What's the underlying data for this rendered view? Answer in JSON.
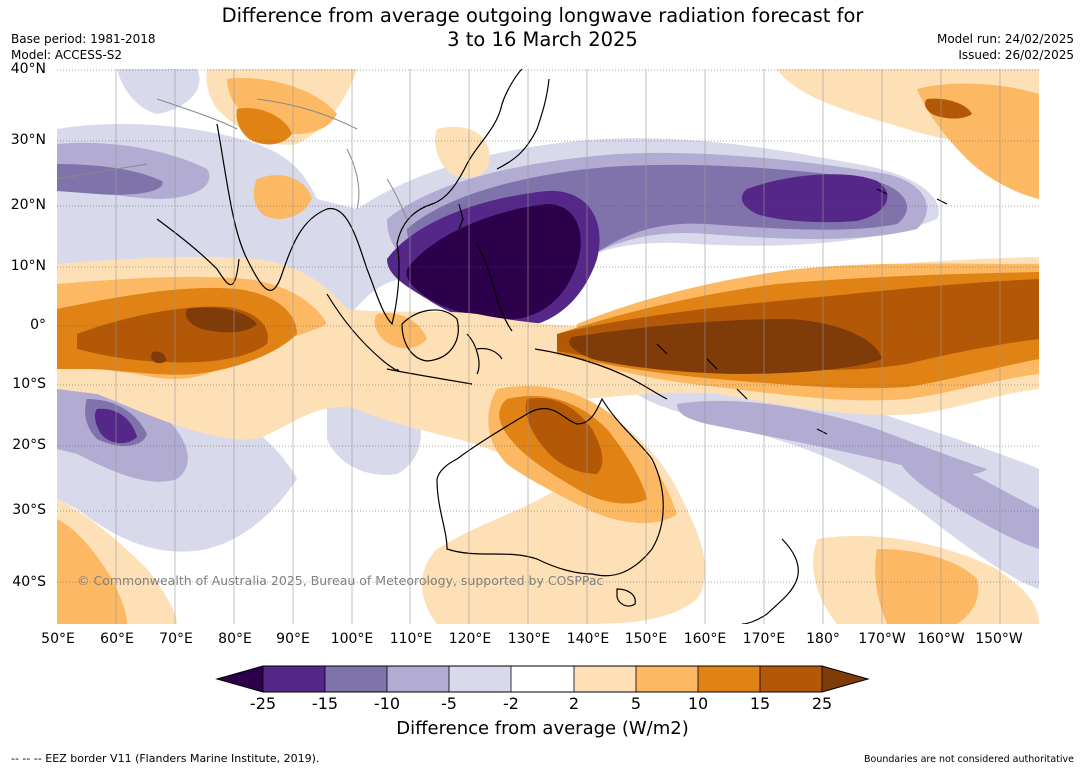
{
  "header": {
    "title_line1": "Difference from average outgoing longwave radiation forecast for",
    "title_line2": "3 to 16 March 2025",
    "base_period": "Base period: 1981-2018",
    "model": "Model: ACCESS-S2",
    "model_run": "Model run: 24/02/2025",
    "issued": "Issued: 26/02/2025"
  },
  "map": {
    "copyright": "© Commonwealth of Australia 2025, Bureau of Meteorology, supported by COSPPac",
    "lat_labels": [
      "40°N",
      "30°N",
      "20°N",
      "10°N",
      "0°",
      "10°S",
      "20°S",
      "30°S",
      "40°S"
    ],
    "lon_labels": [
      "50°E",
      "60°E",
      "70°E",
      "80°E",
      "90°E",
      "100°E",
      "110°E",
      "120°E",
      "130°E",
      "140°E",
      "150°E",
      "160°E",
      "170°E",
      "180°",
      "170°W",
      "160°W",
      "150°W"
    ],
    "colors": {
      "lt_-25": "#2d004b",
      "-25_-15": "#542788",
      "-15_-10": "#8073ac",
      "-10_-5": "#b2abd2",
      "-5_-2": "#d8daeb",
      "-2_2": "#ffffff",
      "2_5": "#fee0b6",
      "5_10": "#fdb863",
      "10_15": "#e08214",
      "15_25": "#b35806",
      "gt_25": "#7f3b08"
    }
  },
  "colorbar": {
    "ticks": [
      "-25",
      "-15",
      "-10",
      "-5",
      "-2",
      "2",
      "5",
      "10",
      "15",
      "25"
    ],
    "colors": [
      "#2d004b",
      "#542788",
      "#8073ac",
      "#b2abd2",
      "#d8daeb",
      "#ffffff",
      "#fee0b6",
      "#fdb863",
      "#e08214",
      "#b35806",
      "#7f3b08"
    ],
    "label": "Difference from average (W/m2)"
  },
  "footer": {
    "eez_note": "--  --  -- EEZ border V11 (Flanders Marine Institute, 2019).",
    "boundaries_note": "Boundaries are not considered authoritative"
  }
}
